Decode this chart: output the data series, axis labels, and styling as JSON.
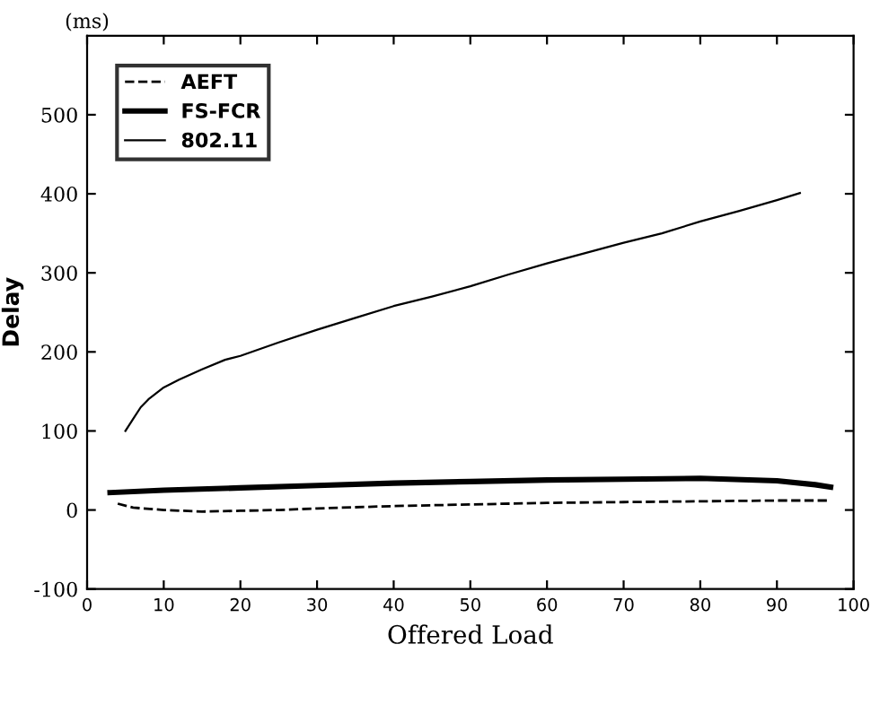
{
  "chart_data": {
    "type": "line",
    "xlabel": "Offered Load",
    "ylabel": "Delay",
    "annotations": [
      "(ms)"
    ],
    "xlim": [
      0,
      100
    ],
    "xticks": [
      0,
      10,
      20,
      30,
      40,
      50,
      60,
      70,
      80,
      90,
      100
    ],
    "ylim": [
      -100,
      600
    ],
    "yticks": [
      -100,
      0,
      100,
      200,
      300,
      400,
      500
    ],
    "grid": false,
    "legend": "top left",
    "marker": "none",
    "series": [
      {
        "name": "AEFT",
        "color": "#000000",
        "line_style": "dashed",
        "x": [
          4,
          6,
          10,
          15,
          20,
          25,
          30,
          40,
          50,
          60,
          70,
          80,
          90,
          97
        ],
        "values": [
          8,
          3,
          0,
          -2,
          -1,
          0,
          2,
          5,
          7,
          9,
          10,
          11,
          12,
          12
        ]
      },
      {
        "name": "FS-FCR",
        "color": "#000000",
        "line_style": "solid",
        "x": [
          3,
          10,
          20,
          30,
          40,
          50,
          60,
          70,
          80,
          90,
          95,
          97
        ],
        "values": [
          22,
          25,
          28,
          31,
          34,
          36,
          38,
          39,
          40,
          37,
          32,
          29
        ]
      },
      {
        "name": "802.11",
        "color": "#000000",
        "line_style": "solid",
        "x": [
          5,
          6,
          7,
          8,
          10,
          12,
          15,
          18,
          20,
          25,
          30,
          35,
          40,
          45,
          50,
          55,
          60,
          65,
          70,
          75,
          80,
          85,
          90,
          93
        ],
        "values": [
          100,
          115,
          130,
          140,
          155,
          165,
          178,
          190,
          195,
          212,
          228,
          243,
          258,
          270,
          283,
          298,
          312,
          325,
          338,
          350,
          365,
          378,
          392,
          401
        ]
      }
    ]
  }
}
